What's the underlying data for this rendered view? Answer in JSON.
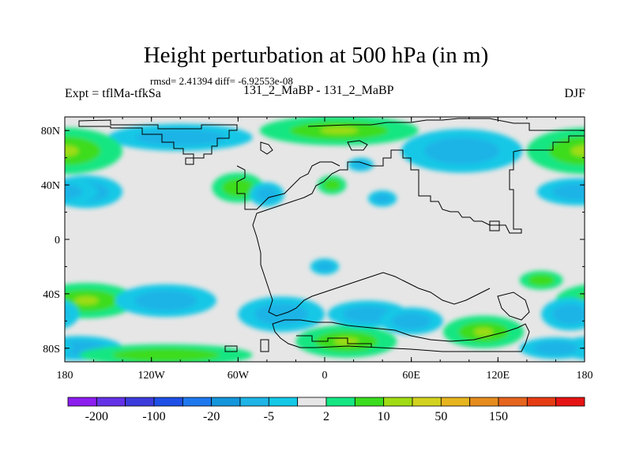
{
  "chart_data": {
    "type": "heatmap",
    "title": "Height perturbation at 500 hPa (in m)",
    "stats_text": "rmsd= 2.41394 diff= -6.92553e-08",
    "left_label": "Expt = tflMa-tfkSa",
    "subtitle": "131_2_MaBP - 131_2_MaBP",
    "season": "DJF",
    "x_range": [
      -180,
      180
    ],
    "y_range": [
      -90,
      90
    ],
    "x_ticks": [
      {
        "value": -180,
        "label": "180"
      },
      {
        "value": -120,
        "label": "120W"
      },
      {
        "value": -60,
        "label": "60W"
      },
      {
        "value": 0,
        "label": "0"
      },
      {
        "value": 60,
        "label": "60E"
      },
      {
        "value": 120,
        "label": "120E"
      },
      {
        "value": 180,
        "label": "180"
      }
    ],
    "y_ticks": [
      {
        "value": 80,
        "label": "80N"
      },
      {
        "value": 40,
        "label": "40N"
      },
      {
        "value": 0,
        "label": "0"
      },
      {
        "value": -40,
        "label": "40S"
      },
      {
        "value": -80,
        "label": "80S"
      }
    ],
    "colorbar": {
      "colors": [
        "#8c1ef0",
        "#6432e6",
        "#3c3cdc",
        "#1e50e6",
        "#1e78ee",
        "#1496dc",
        "#1eb4e6",
        "#14c8e6",
        "#e6e6e6",
        "#14e682",
        "#3cdc1e",
        "#a0dc14",
        "#d2d21e",
        "#e6b41e",
        "#e68c1e",
        "#e6641e",
        "#e63c14",
        "#e61414"
      ],
      "levels": [
        -200,
        -150,
        -100,
        -50,
        -20,
        -10,
        -5,
        -2,
        2,
        5,
        10,
        20,
        50,
        100,
        150,
        200
      ],
      "labels": [
        {
          "level": -200,
          "text": "-200"
        },
        {
          "level": -100,
          "text": "-100"
        },
        {
          "level": -20,
          "text": "-20"
        },
        {
          "level": -5,
          "text": "-5"
        },
        {
          "level": 2,
          "text": "2"
        },
        {
          "level": 10,
          "text": "10"
        },
        {
          "level": 50,
          "text": "50"
        },
        {
          "level": 150,
          "text": "150"
        }
      ]
    },
    "anomalies": [
      {
        "lon": -100,
        "lat": 75,
        "r_lon": 50,
        "r_lat": 10,
        "value": -3
      },
      {
        "lon": -175,
        "lat": 65,
        "r_lon": 22,
        "r_lat": 17,
        "value": 6
      },
      {
        "lon": -165,
        "lat": 35,
        "r_lon": 25,
        "r_lat": 12,
        "value": -4
      },
      {
        "lon": 180,
        "lat": 65,
        "r_lon": 40,
        "r_lat": 17,
        "value": 6
      },
      {
        "lon": 175,
        "lat": 35,
        "r_lon": 28,
        "r_lat": 10,
        "value": -4
      },
      {
        "lon": -60,
        "lat": 38,
        "r_lon": 18,
        "r_lat": 11,
        "value": 4
      },
      {
        "lon": -40,
        "lat": 33,
        "r_lon": 12,
        "r_lat": 9,
        "value": -3
      },
      {
        "lon": 10,
        "lat": 80,
        "r_lon": 55,
        "r_lat": 11,
        "value": 5
      },
      {
        "lon": 95,
        "lat": 65,
        "r_lon": 42,
        "r_lat": 16,
        "value": -4
      },
      {
        "lon": 5,
        "lat": 40,
        "r_lon": 10,
        "r_lat": 7,
        "value": 4
      },
      {
        "lon": 40,
        "lat": 30,
        "r_lon": 10,
        "r_lat": 6,
        "value": -3
      },
      {
        "lon": 25,
        "lat": 55,
        "r_lon": 9,
        "r_lat": 5,
        "value": -3
      },
      {
        "lon": -165,
        "lat": -45,
        "r_lon": 35,
        "r_lat": 13,
        "value": 5
      },
      {
        "lon": -110,
        "lat": -45,
        "r_lon": 35,
        "r_lat": 12,
        "value": -3
      },
      {
        "lon": -30,
        "lat": -55,
        "r_lon": 30,
        "r_lat": 13,
        "value": -3
      },
      {
        "lon": -170,
        "lat": -80,
        "r_lon": 30,
        "r_lat": 9,
        "value": -4
      },
      {
        "lon": -110,
        "lat": -85,
        "r_lon": 60,
        "r_lat": 8,
        "value": 4
      },
      {
        "lon": 15,
        "lat": -75,
        "r_lon": 35,
        "r_lat": 12,
        "value": 5
      },
      {
        "lon": 30,
        "lat": -55,
        "r_lon": 28,
        "r_lat": 10,
        "value": -3
      },
      {
        "lon": 0,
        "lat": -20,
        "r_lon": 10,
        "r_lat": 6,
        "value": -3
      },
      {
        "lon": 60,
        "lat": -60,
        "r_lon": 22,
        "r_lat": 10,
        "value": -4
      },
      {
        "lon": 110,
        "lat": -68,
        "r_lon": 28,
        "r_lat": 12,
        "value": 6
      },
      {
        "lon": 150,
        "lat": -30,
        "r_lon": 15,
        "r_lat": 7,
        "value": 4
      },
      {
        "lon": 170,
        "lat": -55,
        "r_lon": 20,
        "r_lat": 12,
        "value": -3
      },
      {
        "lon": 160,
        "lat": -80,
        "r_lon": 25,
        "r_lat": 8,
        "value": -3
      }
    ]
  }
}
